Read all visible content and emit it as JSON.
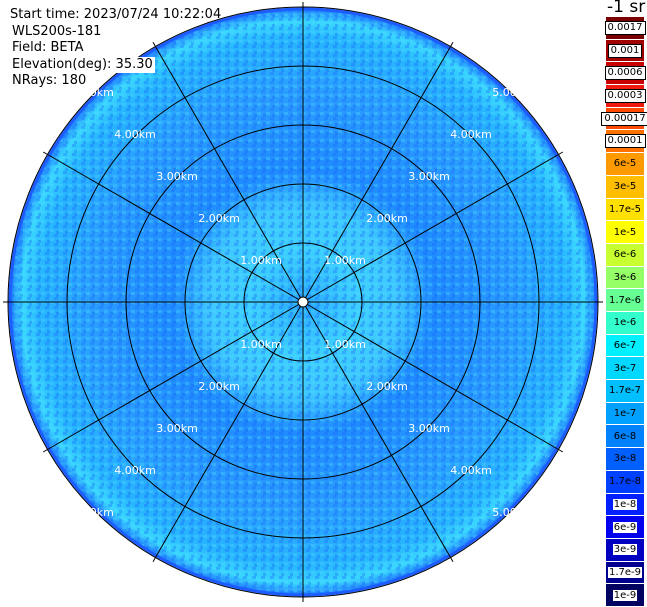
{
  "header": {
    "start_time": "Start time: 2023/07/24 10:22:04",
    "instrument": "WLS200s-181",
    "field": "Field: BETA",
    "elevation": "Elevation(deg): 35.30",
    "nrays": "NRays: 180"
  },
  "colorbar": {
    "unit": "-1 sr",
    "labels": [
      "0.0017",
      "0.001",
      "0.0006",
      "0.0003",
      "0.00017",
      "0.0001",
      "6e-5",
      "3e-5",
      "1.7e-5",
      "1e-5",
      "6e-6",
      "3e-6",
      "1.7e-6",
      "1e-6",
      "6e-7",
      "3e-7",
      "1.7e-7",
      "1e-7",
      "6e-8",
      "3e-8",
      "1.7e-8",
      "1e-8",
      "6e-9",
      "3e-9",
      "1.7e-9",
      "1e-9"
    ],
    "colors": [
      "#7a0000",
      "#a00000",
      "#c80000",
      "#ee1a10",
      "#ff4a00",
      "#ff7200",
      "#ff9a00",
      "#ffbe00",
      "#ffe000",
      "#ffff00",
      "#c8ff30",
      "#94ff66",
      "#66ff94",
      "#33ffcc",
      "#00f0ff",
      "#00d8ff",
      "#00bfff",
      "#00a0ff",
      "#0082ff",
      "#0060ff",
      "#0040ff",
      "#0020ff",
      "#0000ee",
      "#0000c0",
      "#000090",
      "#000060"
    ]
  },
  "range_labels": {
    "r1": "1.00km",
    "r2": "2.00km",
    "r3": "3.00km",
    "r4": "4.00km",
    "r5": "5.00km"
  }
}
